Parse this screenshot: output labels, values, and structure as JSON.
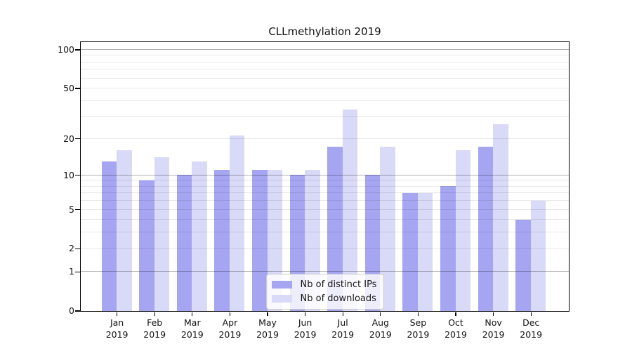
{
  "title": "CLLmethylation 2019",
  "chart_data": {
    "type": "bar",
    "title": "CLLmethylation 2019",
    "categories": [
      "Jan",
      "Feb",
      "Mar",
      "Apr",
      "May",
      "Jun",
      "Jul",
      "Aug",
      "Sep",
      "Oct",
      "Nov",
      "Dec"
    ],
    "category_year": "2019",
    "series": [
      {
        "name": "Nb of distinct IPs",
        "color": "#a5a5f1",
        "values": [
          13,
          9,
          10,
          11,
          11,
          10,
          17,
          10,
          7,
          8,
          17,
          4
        ]
      },
      {
        "name": "Nb of downloads",
        "color": "#d9d9f8",
        "values": [
          16,
          14,
          13,
          21,
          11,
          11,
          34,
          17,
          7,
          16,
          26,
          6
        ]
      }
    ],
    "xlabel": "",
    "ylabel": "",
    "yscale": "log10(1+x)",
    "ylim": [
      0,
      115
    ],
    "yticks": [
      0,
      1,
      2,
      5,
      10,
      20,
      50,
      100
    ],
    "major_gridlines": [
      1,
      10,
      100
    ],
    "minor_gridlines": [
      2,
      3,
      4,
      5,
      6,
      7,
      8,
      9,
      20,
      30,
      40,
      50,
      60,
      70,
      80,
      90
    ],
    "grid": true,
    "legend_position": "lower-center-inside",
    "colors": {
      "distinct_ips_bar": "#a5a5f1",
      "downloads_bar": "#d9d9f8",
      "major_grid": "#b3b3b3",
      "minor_grid": "#e8e8e8",
      "axis": "#000000",
      "background": "#ffffff"
    }
  }
}
